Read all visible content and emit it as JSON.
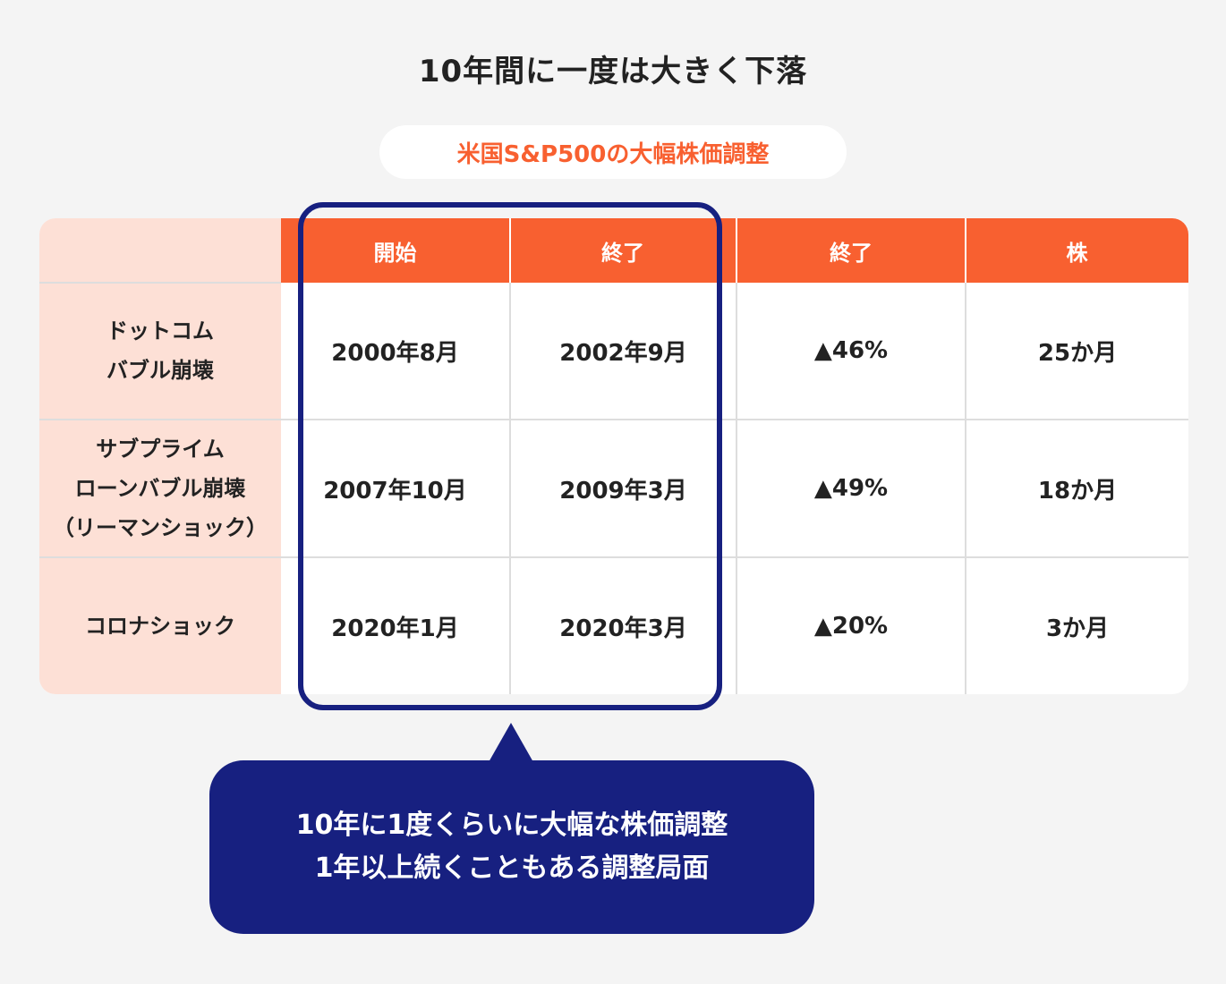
{
  "title": "10年間に一度は大きく下落",
  "subtitle": "米国S&P500の大幅株価調整",
  "table": {
    "headers": [
      "開始",
      "終了",
      "終了",
      "株"
    ],
    "rows": [
      {
        "label": "ドットコム\nバブル崩壊",
        "cells": [
          "2000年8月",
          "2002年9月",
          "▲46%",
          "25か月"
        ]
      },
      {
        "label": "サブプライム\nローンバブル崩壊\n（リーマンショック）",
        "cells": [
          "2007年10月",
          "2009年3月",
          "▲49%",
          "18か月"
        ]
      },
      {
        "label": "コロナショック",
        "cells": [
          "2020年1月",
          "2020年3月",
          "▲20%",
          "3か月"
        ]
      }
    ]
  },
  "callout": {
    "line1": "10年に1度くらいに大幅な株価調整",
    "line2": "1年以上続くこともある調整局面"
  },
  "colors": {
    "accent": "#f86030",
    "navy": "#172080",
    "row_header_bg": "#fde0d6",
    "background": "#f4f4f4"
  }
}
